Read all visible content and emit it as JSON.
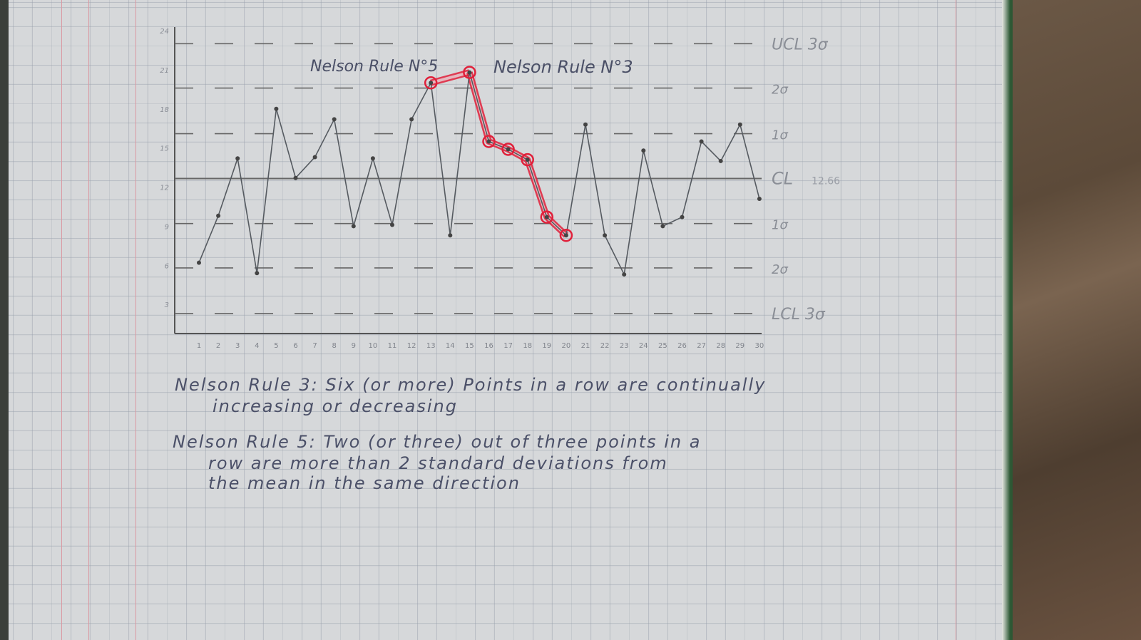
{
  "chart_data": {
    "type": "line",
    "title": "",
    "x": [
      1,
      2,
      3,
      4,
      5,
      6,
      7,
      8,
      9,
      10,
      11,
      12,
      13,
      14,
      15,
      16,
      17,
      18,
      19,
      20,
      21,
      22,
      23,
      24,
      25,
      26,
      27,
      28,
      29,
      30
    ],
    "x_tick_labels": [
      "1",
      "2",
      "3",
      "4",
      "5",
      "6",
      "7",
      "8",
      "9",
      "10",
      "11",
      "12",
      "13",
      "14",
      "15",
      "16",
      "17",
      "18",
      "19",
      "20",
      "21",
      "22",
      "23",
      "24",
      "25",
      "26",
      "27",
      "28",
      "29",
      "30"
    ],
    "y_tick_labels": [
      "24",
      "21",
      "18",
      "15",
      "12",
      "9",
      "6",
      "3"
    ],
    "y_ticks": [
      24,
      21,
      18,
      15,
      12,
      9,
      6,
      3
    ],
    "ylim": [
      0,
      24
    ],
    "series": [
      {
        "values": [
          6.2,
          9.8,
          14.2,
          5.4,
          18.0,
          12.7,
          14.3,
          17.2,
          9.0,
          14.2,
          9.1,
          17.2,
          20.0,
          8.3,
          20.8,
          15.5,
          14.9,
          14.1,
          9.7,
          8.3,
          16.8,
          8.3,
          5.3,
          14.8,
          9.0,
          9.7,
          15.5,
          14.0,
          16.8,
          11.1
        ]
      }
    ],
    "control_lines": [
      {
        "label": "UCL 3σ",
        "value": 23.0,
        "style": "dashed"
      },
      {
        "label": "2σ",
        "value": 19.6,
        "style": "dashed"
      },
      {
        "label": "1σ",
        "value": 16.1,
        "style": "dashed"
      },
      {
        "label": "CL",
        "sub": "12.66",
        "value": 12.66,
        "style": "solid"
      },
      {
        "label": "1σ",
        "value": 9.2,
        "style": "dashed"
      },
      {
        "label": "2σ",
        "value": 5.8,
        "style": "dashed"
      },
      {
        "label": "LCL 3σ",
        "value": 2.3,
        "style": "dashed"
      }
    ],
    "highlights": [
      {
        "label": "Nelson Rule N°5",
        "points": [
          13,
          15
        ]
      },
      {
        "label": "Nelson Rule N°3",
        "points": [
          15,
          16,
          17,
          18,
          19,
          20
        ]
      }
    ],
    "colors": {
      "pencil": "#555a60",
      "highlight": "#e0203a",
      "paper": "#d6d8da"
    },
    "grid": true
  },
  "notes": {
    "rule3_line1": "Nelson Rule 3: Six (or more) Points in a row are continually",
    "rule3_line2": "increasing or decreasing",
    "rule5_line1": "Nelson Rule 5: Two (or three) out of three points in a",
    "rule5_line2": "row are more than 2 standard deviations from",
    "rule5_line3": "the mean in the same direction"
  }
}
